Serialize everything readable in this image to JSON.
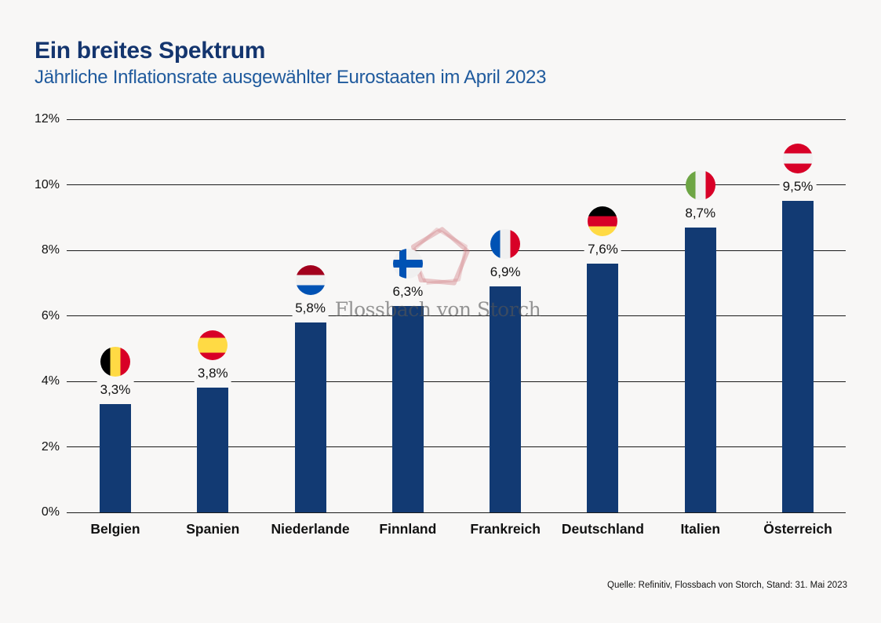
{
  "page": {
    "background": "#f8f7f6"
  },
  "header": {
    "title": "Ein breites Spektrum",
    "subtitle": "Jährliche Inflationsrate ausgewählter Eurostaaten im April 2023",
    "title_color": "#14356e",
    "subtitle_color": "#1f5a9d"
  },
  "watermark": {
    "text": "Flossbach von Storch",
    "shape": "pentagon-outline",
    "shape_color": "rgba(208,122,130,0.40)",
    "text_color": "rgba(85,85,85,0.62)"
  },
  "footer": {
    "source": "Quelle: Refinitiv, Flossbach von Storch, Stand: 31. Mai 2023"
  },
  "chart_data": {
    "type": "bar",
    "title": "Ein breites Spektrum",
    "subtitle": "Jährliche Inflationsrate ausgewählter Eurostaaten im April 2023",
    "categories": [
      "Belgien",
      "Spanien",
      "Niederlande",
      "Finnland",
      "Frankreich",
      "Deutschland",
      "Italien",
      "Österreich"
    ],
    "values": [
      3.3,
      3.8,
      5.8,
      6.3,
      6.9,
      7.6,
      8.7,
      9.5
    ],
    "value_labels": [
      "3,3%",
      "3,8%",
      "5,8%",
      "6,3%",
      "6,9%",
      "7,6%",
      "8,7%",
      "9,5%"
    ],
    "bar_color": "#123a73",
    "xlabel": "",
    "ylabel": "",
    "ylim": [
      0,
      12
    ],
    "yticks": [
      0,
      2,
      4,
      6,
      8,
      10,
      12
    ],
    "ytick_labels": [
      "0%",
      "2%",
      "4%",
      "6%",
      "8%",
      "10%",
      "12%"
    ],
    "grid": true,
    "legend": "none",
    "flags": [
      {
        "name": "belgium-flag-icon",
        "type": "vertical",
        "colors": [
          "#000000",
          "#ffda44",
          "#d80027"
        ],
        "weights": [
          1,
          1,
          1
        ]
      },
      {
        "name": "spain-flag-icon",
        "type": "horizontal",
        "colors": [
          "#d80027",
          "#ffda44",
          "#d80027"
        ],
        "weights": [
          1,
          2,
          1
        ]
      },
      {
        "name": "netherlands-flag-icon",
        "type": "horizontal",
        "colors": [
          "#a2001d",
          "#f0f0f0",
          "#0052b4"
        ],
        "weights": [
          1,
          1,
          1
        ]
      },
      {
        "name": "finland-flag-icon",
        "type": "nordic-cross",
        "bg": "#f0f0f0",
        "cross": "#0052b4"
      },
      {
        "name": "france-flag-icon",
        "type": "vertical",
        "colors": [
          "#0052b4",
          "#f0f0f0",
          "#d80027"
        ],
        "weights": [
          1,
          1,
          1
        ]
      },
      {
        "name": "germany-flag-icon",
        "type": "horizontal",
        "colors": [
          "#000000",
          "#d80027",
          "#ffda44"
        ],
        "weights": [
          1,
          1,
          1
        ]
      },
      {
        "name": "italy-flag-icon",
        "type": "vertical",
        "colors": [
          "#6da544",
          "#f0f0f0",
          "#d80027"
        ],
        "weights": [
          1,
          1,
          1
        ]
      },
      {
        "name": "austria-flag-icon",
        "type": "horizontal",
        "colors": [
          "#d80027",
          "#f0f0f0",
          "#d80027"
        ],
        "weights": [
          1,
          1,
          1
        ]
      }
    ]
  }
}
